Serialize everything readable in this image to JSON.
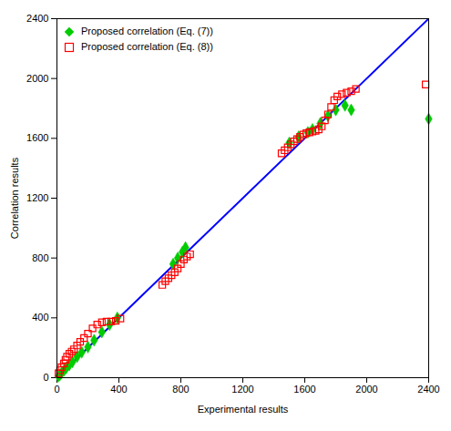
{
  "chart_data": {
    "type": "scatter",
    "title": "",
    "xlabel": "Experimental results",
    "ylabel": "Correlation results",
    "xlim": [
      0,
      2400
    ],
    "ylim": [
      0,
      2400
    ],
    "xticks": [
      0,
      400,
      800,
      1200,
      1600,
      2000,
      2400
    ],
    "yticks": [
      0,
      400,
      800,
      1200,
      1600,
      2000,
      2400
    ],
    "legend": "upper left",
    "series": [
      {
        "type": "line",
        "color": "#0000ff",
        "line_style": "solid",
        "x": [
          0,
          2400
        ],
        "y": [
          0,
          2400
        ]
      },
      {
        "type": "scatter",
        "name": "Proposed correlation (Eq. (7))",
        "color": "#00cc00",
        "marker": "diamond",
        "x": [
          10,
          20,
          30,
          45,
          60,
          80,
          100,
          130,
          160,
          200,
          240,
          290,
          340,
          390,
          750,
          780,
          810,
          830,
          1500,
          1560,
          1620,
          1650,
          1700,
          1750,
          1800,
          1860,
          1900,
          2400
        ],
        "y": [
          10,
          20,
          32,
          48,
          65,
          85,
          105,
          140,
          170,
          205,
          250,
          305,
          355,
          400,
          760,
          800,
          840,
          870,
          1570,
          1610,
          1640,
          1660,
          1700,
          1750,
          1790,
          1820,
          1790,
          1730
        ]
      },
      {
        "type": "scatter",
        "name": "Proposed correlation (Eq. (8))",
        "color": "#ff0000",
        "marker": "square",
        "x": [
          10,
          20,
          30,
          45,
          55,
          65,
          80,
          95,
          110,
          130,
          150,
          175,
          200,
          230,
          260,
          290,
          320,
          350,
          380,
          410,
          680,
          700,
          720,
          740,
          760,
          780,
          800,
          820,
          840,
          860,
          1450,
          1470,
          1490,
          1510,
          1530,
          1550,
          1570,
          1590,
          1610,
          1630,
          1650,
          1670,
          1690,
          1710,
          1730,
          1750,
          1770,
          1790,
          1810,
          1840,
          1870,
          1900,
          1930,
          2380
        ],
        "y": [
          30,
          50,
          70,
          95,
          120,
          140,
          160,
          175,
          190,
          215,
          240,
          265,
          295,
          330,
          355,
          370,
          375,
          375,
          380,
          395,
          620,
          645,
          665,
          685,
          705,
          730,
          760,
          790,
          810,
          825,
          1500,
          1520,
          1540,
          1560,
          1580,
          1595,
          1610,
          1625,
          1635,
          1640,
          1645,
          1650,
          1660,
          1680,
          1720,
          1760,
          1810,
          1855,
          1880,
          1895,
          1905,
          1915,
          1930,
          1960
        ]
      }
    ]
  }
}
